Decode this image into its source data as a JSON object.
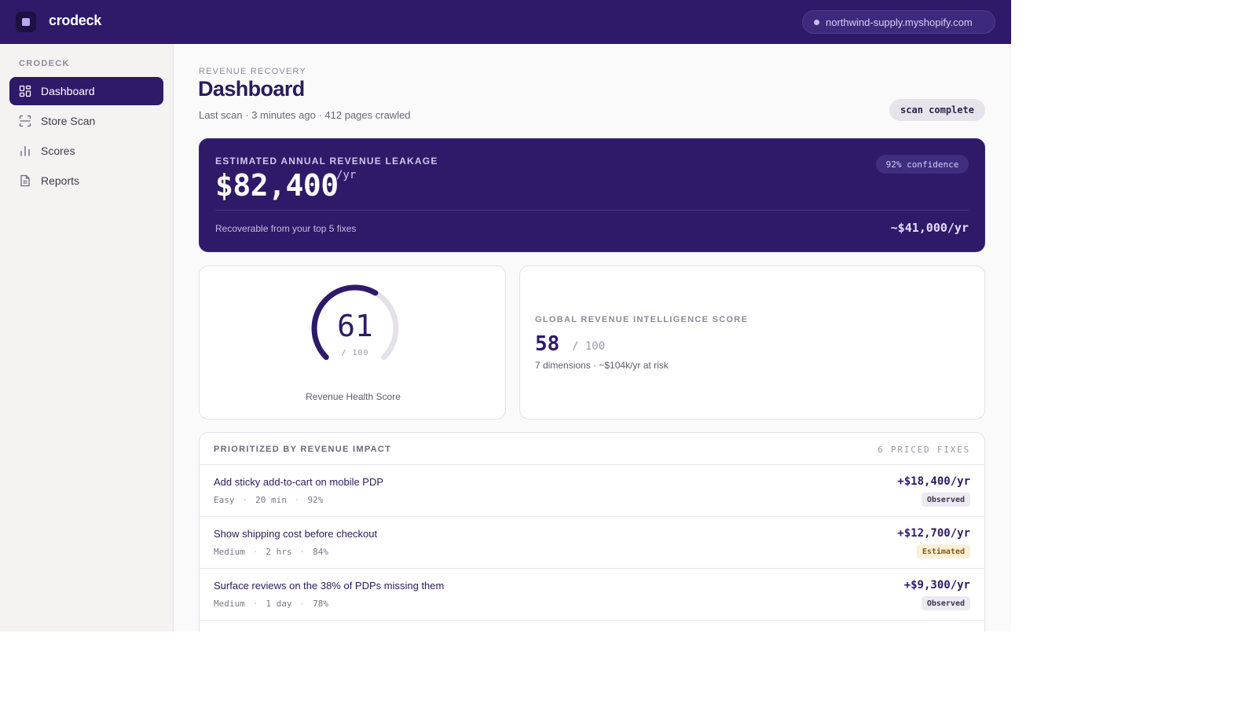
{
  "app": {
    "brand": "crodeck",
    "store": "northwind-supply.myshopify.com"
  },
  "sidebar": {
    "heading": "CRODECK",
    "items": [
      {
        "label": "Dashboard",
        "icon": "dashboard-grid-icon",
        "active": true
      },
      {
        "label": "Store Scan",
        "icon": "scan-icon",
        "active": false
      },
      {
        "label": "Scores",
        "icon": "bar-chart-icon",
        "active": false
      },
      {
        "label": "Reports",
        "icon": "document-icon",
        "active": false
      }
    ]
  },
  "header": {
    "eyebrow": "REVENUE RECOVERY",
    "title": "Dashboard",
    "subtitle": "Last scan · 3 minutes ago · 412 pages crawled",
    "status_badge": "scan complete"
  },
  "leakage": {
    "label": "ESTIMATED ANNUAL REVENUE LEAKAGE",
    "amount": "$82,400",
    "unit": "/yr",
    "confidence": "92% confidence",
    "footer": "Recoverable from your top 5 fixes",
    "recoverable": "~$41,000/yr"
  },
  "health": {
    "score": "61",
    "score_value": 61,
    "max_label": "/ 100",
    "label": "Revenue Health Score"
  },
  "gri": {
    "label": "GLOBAL REVENUE INTELLIGENCE SCORE",
    "score": "58",
    "of": "/ 100",
    "description": "7 dimensions · ~$104k/yr at risk"
  },
  "fixes": {
    "title": "PRIORITIZED BY REVENUE IMPACT",
    "count": "6 PRICED FIXES",
    "rows": [
      {
        "title": "Add sticky add-to-cart on mobile PDP",
        "effort": "Easy",
        "time": "20 min",
        "confidence": "92%",
        "value": "+$18,400/yr",
        "badge": "Observed"
      },
      {
        "title": "Show shipping cost before checkout",
        "effort": "Medium",
        "time": "2 hrs",
        "confidence": "84%",
        "value": "+$12,700/yr",
        "badge": "Estimated"
      },
      {
        "title": "Surface reviews on the 38% of PDPs missing them",
        "effort": "Medium",
        "time": "1 day",
        "confidence": "78%",
        "value": "+$9,300/yr",
        "badge": "Observed"
      }
    ]
  },
  "colors": {
    "brand": "#2e1a68",
    "gauge_track": "#e4e2e8",
    "observed_bg": "#eceaf0",
    "estimated_bg": "#fcefd9"
  }
}
